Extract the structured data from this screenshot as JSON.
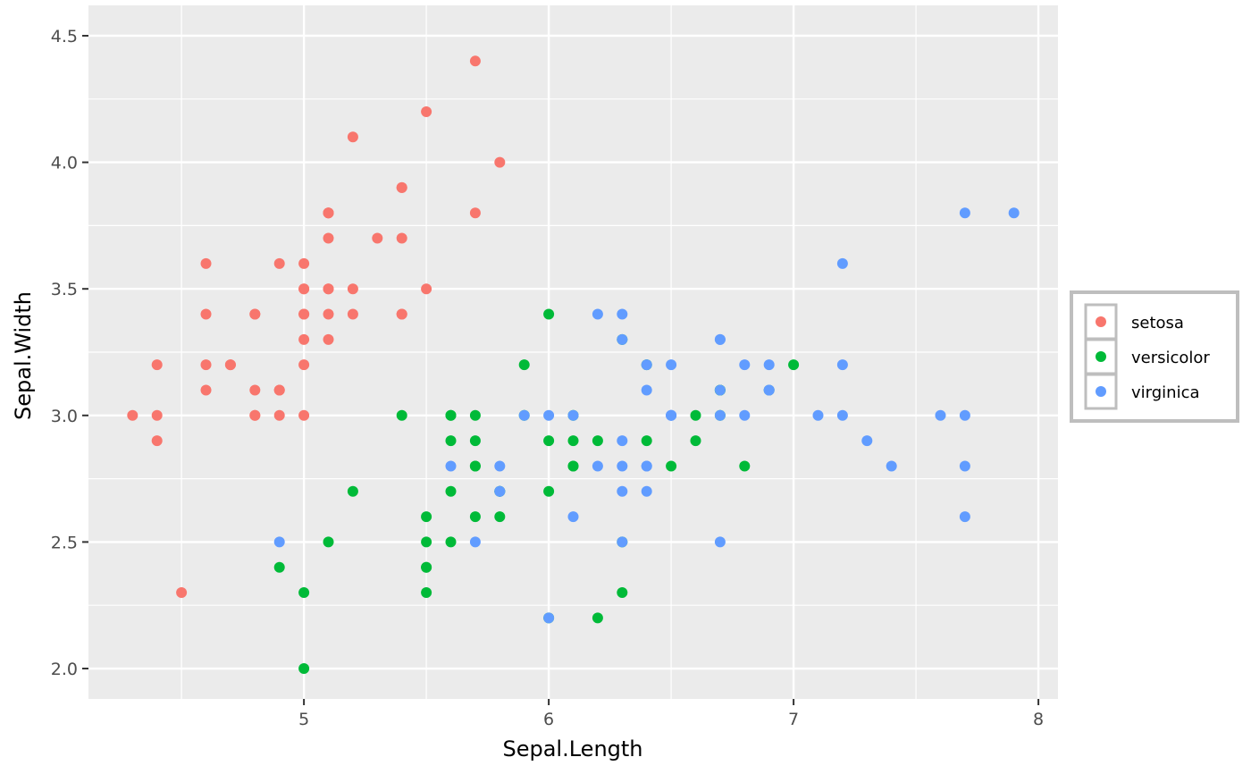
{
  "chart_data": {
    "type": "scatter",
    "title": "",
    "xlabel": "Sepal.Length",
    "ylabel": "Sepal.Width",
    "xlim": [
      4.12,
      8.08
    ],
    "ylim": [
      1.88,
      4.62
    ],
    "x_ticks": [
      5,
      6,
      7,
      8
    ],
    "x_tick_labels": [
      "5",
      "6",
      "7",
      "8"
    ],
    "y_ticks": [
      2.0,
      2.5,
      3.0,
      3.5,
      4.0,
      4.5
    ],
    "y_tick_labels": [
      "2.0",
      "2.5",
      "3.0",
      "3.5",
      "4.0",
      "4.5"
    ],
    "grid": true,
    "legend_position": "right",
    "series": [
      {
        "name": "setosa",
        "color": "#F8766D",
        "points": [
          [
            5.1,
            3.5
          ],
          [
            4.9,
            3.0
          ],
          [
            4.7,
            3.2
          ],
          [
            4.6,
            3.1
          ],
          [
            5.0,
            3.6
          ],
          [
            5.4,
            3.9
          ],
          [
            4.6,
            3.4
          ],
          [
            5.0,
            3.4
          ],
          [
            4.4,
            2.9
          ],
          [
            4.9,
            3.1
          ],
          [
            5.4,
            3.7
          ],
          [
            4.8,
            3.4
          ],
          [
            4.8,
            3.0
          ],
          [
            4.3,
            3.0
          ],
          [
            5.8,
            4.0
          ],
          [
            5.7,
            4.4
          ],
          [
            5.4,
            3.9
          ],
          [
            5.1,
            3.5
          ],
          [
            5.7,
            3.8
          ],
          [
            5.1,
            3.8
          ],
          [
            5.4,
            3.4
          ],
          [
            5.1,
            3.7
          ],
          [
            4.6,
            3.6
          ],
          [
            5.1,
            3.3
          ],
          [
            4.8,
            3.4
          ],
          [
            5.0,
            3.0
          ],
          [
            5.0,
            3.4
          ],
          [
            5.2,
            3.5
          ],
          [
            5.2,
            3.4
          ],
          [
            4.7,
            3.2
          ],
          [
            4.8,
            3.1
          ],
          [
            5.4,
            3.4
          ],
          [
            5.2,
            4.1
          ],
          [
            5.5,
            4.2
          ],
          [
            4.9,
            3.1
          ],
          [
            5.0,
            3.2
          ],
          [
            5.5,
            3.5
          ],
          [
            4.9,
            3.6
          ],
          [
            4.4,
            3.0
          ],
          [
            5.1,
            3.4
          ],
          [
            5.0,
            3.5
          ],
          [
            4.5,
            2.3
          ],
          [
            4.4,
            3.2
          ],
          [
            5.0,
            3.5
          ],
          [
            5.1,
            3.8
          ],
          [
            4.8,
            3.0
          ],
          [
            5.1,
            3.8
          ],
          [
            4.6,
            3.2
          ],
          [
            5.3,
            3.7
          ],
          [
            5.0,
            3.3
          ]
        ]
      },
      {
        "name": "versicolor",
        "color": "#00BA38",
        "points": [
          [
            7.0,
            3.2
          ],
          [
            6.4,
            3.2
          ],
          [
            6.9,
            3.1
          ],
          [
            5.5,
            2.3
          ],
          [
            6.5,
            2.8
          ],
          [
            5.7,
            2.8
          ],
          [
            6.3,
            3.3
          ],
          [
            4.9,
            2.4
          ],
          [
            6.6,
            2.9
          ],
          [
            5.2,
            2.7
          ],
          [
            5.0,
            2.0
          ],
          [
            5.9,
            3.0
          ],
          [
            6.0,
            2.2
          ],
          [
            6.1,
            2.9
          ],
          [
            5.6,
            2.9
          ],
          [
            6.7,
            3.1
          ],
          [
            5.6,
            3.0
          ],
          [
            5.8,
            2.7
          ],
          [
            6.2,
            2.2
          ],
          [
            5.6,
            2.5
          ],
          [
            5.9,
            3.2
          ],
          [
            6.1,
            2.8
          ],
          [
            6.3,
            2.5
          ],
          [
            6.1,
            2.8
          ],
          [
            6.4,
            2.9
          ],
          [
            6.6,
            3.0
          ],
          [
            6.8,
            2.8
          ],
          [
            6.7,
            3.0
          ],
          [
            6.0,
            2.9
          ],
          [
            5.7,
            2.6
          ],
          [
            5.5,
            2.4
          ],
          [
            5.5,
            2.4
          ],
          [
            5.8,
            2.7
          ],
          [
            6.0,
            2.7
          ],
          [
            5.4,
            3.0
          ],
          [
            6.0,
            3.4
          ],
          [
            6.7,
            3.1
          ],
          [
            6.3,
            2.3
          ],
          [
            5.6,
            3.0
          ],
          [
            5.5,
            2.5
          ],
          [
            5.5,
            2.6
          ],
          [
            6.1,
            3.0
          ],
          [
            5.8,
            2.6
          ],
          [
            5.0,
            2.3
          ],
          [
            5.6,
            2.7
          ],
          [
            5.7,
            3.0
          ],
          [
            5.7,
            2.9
          ],
          [
            6.2,
            2.9
          ],
          [
            5.1,
            2.5
          ],
          [
            5.7,
            2.8
          ]
        ]
      },
      {
        "name": "virginica",
        "color": "#619CFF",
        "points": [
          [
            6.3,
            3.3
          ],
          [
            5.8,
            2.7
          ],
          [
            7.1,
            3.0
          ],
          [
            6.3,
            2.9
          ],
          [
            6.5,
            3.0
          ],
          [
            7.6,
            3.0
          ],
          [
            4.9,
            2.5
          ],
          [
            7.3,
            2.9
          ],
          [
            6.7,
            2.5
          ],
          [
            7.2,
            3.6
          ],
          [
            6.5,
            3.2
          ],
          [
            6.4,
            2.7
          ],
          [
            6.8,
            3.0
          ],
          [
            5.7,
            2.5
          ],
          [
            5.8,
            2.8
          ],
          [
            6.4,
            3.2
          ],
          [
            6.5,
            3.0
          ],
          [
            7.7,
            3.8
          ],
          [
            7.7,
            2.6
          ],
          [
            6.0,
            2.2
          ],
          [
            6.9,
            3.2
          ],
          [
            5.6,
            2.8
          ],
          [
            7.7,
            2.8
          ],
          [
            6.3,
            2.7
          ],
          [
            6.7,
            3.3
          ],
          [
            7.2,
            3.2
          ],
          [
            6.2,
            2.8
          ],
          [
            6.1,
            3.0
          ],
          [
            6.4,
            2.8
          ],
          [
            7.2,
            3.0
          ],
          [
            7.4,
            2.8
          ],
          [
            7.9,
            3.8
          ],
          [
            6.4,
            2.8
          ],
          [
            6.3,
            2.8
          ],
          [
            6.1,
            2.6
          ],
          [
            7.7,
            3.0
          ],
          [
            6.3,
            3.4
          ],
          [
            6.4,
            3.1
          ],
          [
            6.0,
            3.0
          ],
          [
            6.9,
            3.1
          ],
          [
            6.7,
            3.1
          ],
          [
            6.9,
            3.1
          ],
          [
            5.8,
            2.7
          ],
          [
            6.8,
            3.2
          ],
          [
            6.7,
            3.3
          ],
          [
            6.7,
            3.0
          ],
          [
            6.3,
            2.5
          ],
          [
            6.5,
            3.0
          ],
          [
            6.2,
            3.4
          ],
          [
            5.9,
            3.0
          ]
        ]
      }
    ]
  }
}
